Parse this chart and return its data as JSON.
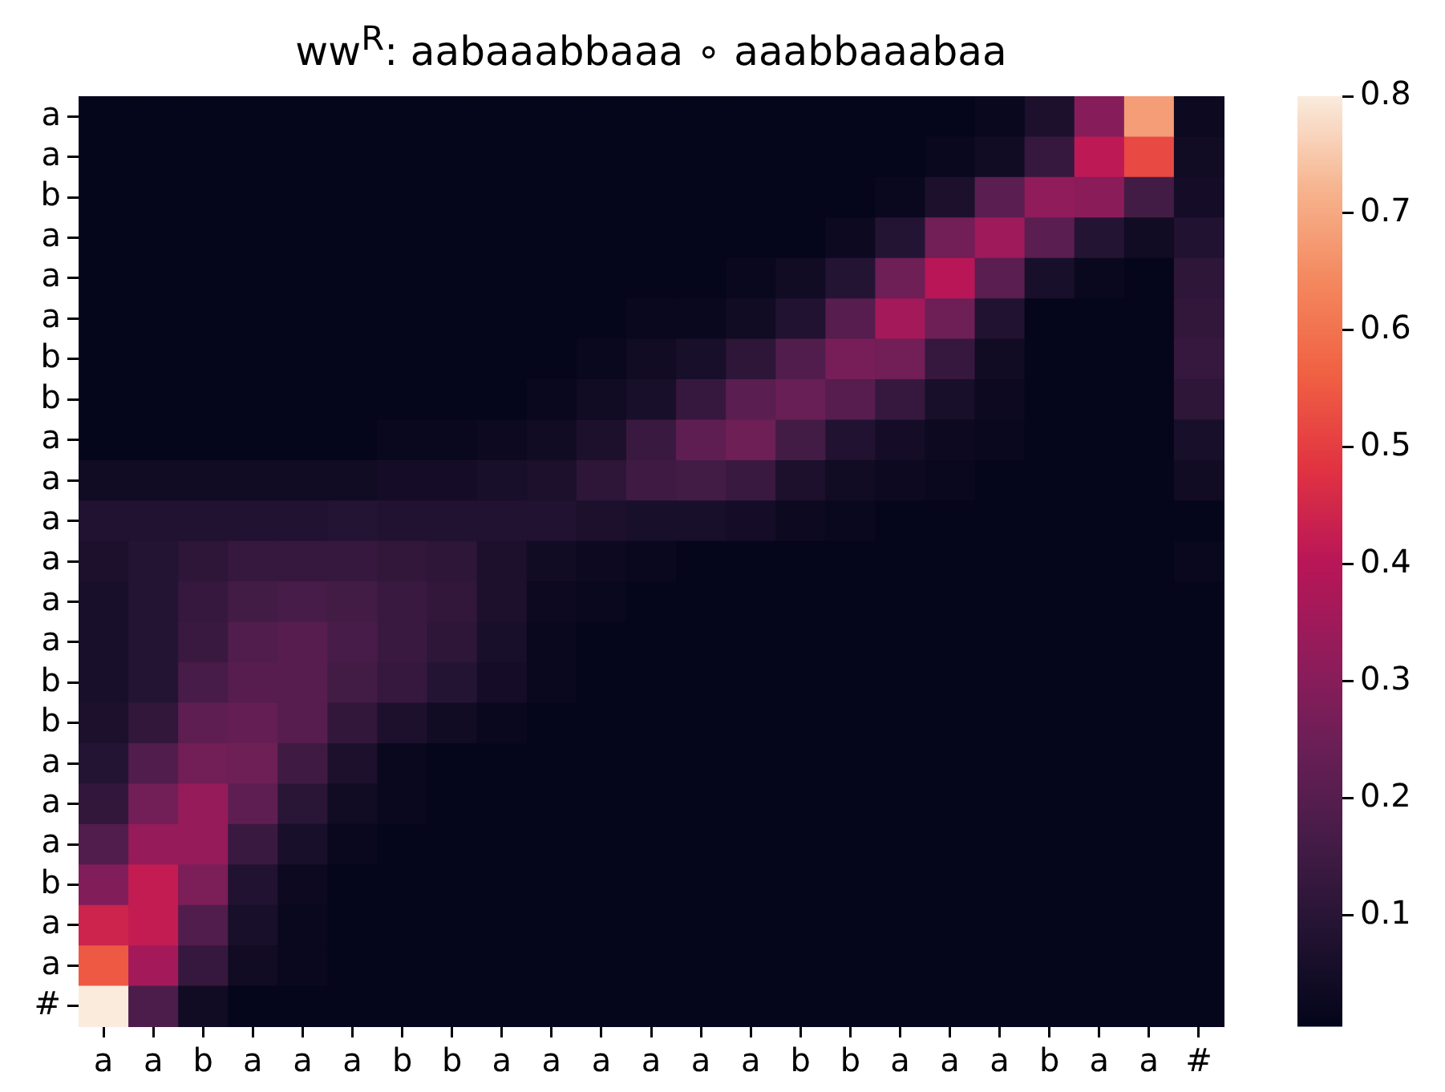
{
  "chart_data": {
    "type": "heatmap",
    "title": "ww$^{R}$: aabaaabbaaa ∘ aaabbaaabaa",
    "categories": [
      "a",
      "a",
      "b",
      "a",
      "a",
      "a",
      "b",
      "b",
      "a",
      "a",
      "a",
      "a",
      "a",
      "a",
      "b",
      "b",
      "a",
      "a",
      "a",
      "b",
      "a",
      "a",
      "#"
    ],
    "y_categories": [
      "a",
      "a",
      "b",
      "a",
      "a",
      "a",
      "b",
      "b",
      "a",
      "a",
      "a",
      "a",
      "a",
      "a",
      "b",
      "b",
      "a",
      "a",
      "a",
      "b",
      "a",
      "a",
      "#"
    ],
    "clim": [
      0.005,
      0.8
    ],
    "cticks": [
      0.1,
      0.2,
      0.3,
      0.4,
      0.5,
      0.6,
      0.7,
      0.8
    ],
    "cells": [
      [
        0.01,
        0.01,
        0.01,
        0.01,
        0.01,
        0.01,
        0.01,
        0.01,
        0.01,
        0.01,
        0.01,
        0.01,
        0.01,
        0.01,
        0.01,
        0.01,
        0.01,
        0.01,
        0.02,
        0.07,
        0.3,
        0.68,
        0.03
      ],
      [
        0.01,
        0.01,
        0.01,
        0.01,
        0.01,
        0.01,
        0.01,
        0.01,
        0.01,
        0.01,
        0.01,
        0.01,
        0.01,
        0.01,
        0.01,
        0.01,
        0.01,
        0.02,
        0.04,
        0.13,
        0.41,
        0.52,
        0.04
      ],
      [
        0.01,
        0.01,
        0.01,
        0.01,
        0.01,
        0.01,
        0.01,
        0.01,
        0.01,
        0.01,
        0.01,
        0.01,
        0.01,
        0.01,
        0.01,
        0.01,
        0.02,
        0.07,
        0.21,
        0.32,
        0.31,
        0.16,
        0.05
      ],
      [
        0.01,
        0.01,
        0.01,
        0.01,
        0.01,
        0.01,
        0.01,
        0.01,
        0.01,
        0.01,
        0.01,
        0.01,
        0.01,
        0.01,
        0.01,
        0.03,
        0.09,
        0.26,
        0.35,
        0.21,
        0.09,
        0.04,
        0.08
      ],
      [
        0.01,
        0.01,
        0.01,
        0.01,
        0.01,
        0.01,
        0.01,
        0.01,
        0.01,
        0.01,
        0.01,
        0.01,
        0.01,
        0.02,
        0.04,
        0.09,
        0.25,
        0.4,
        0.21,
        0.06,
        0.02,
        0.01,
        0.11
      ],
      [
        0.01,
        0.01,
        0.01,
        0.01,
        0.01,
        0.01,
        0.01,
        0.01,
        0.01,
        0.01,
        0.01,
        0.02,
        0.02,
        0.04,
        0.08,
        0.2,
        0.36,
        0.25,
        0.08,
        0.01,
        0.01,
        0.01,
        0.12
      ],
      [
        0.01,
        0.01,
        0.01,
        0.01,
        0.01,
        0.01,
        0.01,
        0.01,
        0.01,
        0.01,
        0.02,
        0.04,
        0.06,
        0.11,
        0.19,
        0.27,
        0.26,
        0.13,
        0.04,
        0.01,
        0.01,
        0.01,
        0.13
      ],
      [
        0.01,
        0.01,
        0.01,
        0.01,
        0.01,
        0.01,
        0.01,
        0.01,
        0.01,
        0.02,
        0.04,
        0.06,
        0.13,
        0.21,
        0.24,
        0.2,
        0.13,
        0.06,
        0.03,
        0.01,
        0.01,
        0.01,
        0.11
      ],
      [
        0.01,
        0.01,
        0.01,
        0.01,
        0.01,
        0.01,
        0.02,
        0.02,
        0.03,
        0.04,
        0.07,
        0.14,
        0.22,
        0.25,
        0.16,
        0.08,
        0.05,
        0.03,
        0.02,
        0.01,
        0.01,
        0.01,
        0.06
      ],
      [
        0.04,
        0.04,
        0.04,
        0.04,
        0.04,
        0.04,
        0.05,
        0.05,
        0.06,
        0.07,
        0.11,
        0.15,
        0.16,
        0.14,
        0.07,
        0.04,
        0.03,
        0.02,
        0.01,
        0.01,
        0.01,
        0.01,
        0.04
      ],
      [
        0.08,
        0.08,
        0.08,
        0.08,
        0.08,
        0.09,
        0.08,
        0.08,
        0.08,
        0.08,
        0.07,
        0.06,
        0.06,
        0.05,
        0.03,
        0.02,
        0.01,
        0.01,
        0.01,
        0.01,
        0.01,
        0.01,
        0.01
      ],
      [
        0.07,
        0.09,
        0.11,
        0.13,
        0.13,
        0.13,
        0.12,
        0.11,
        0.07,
        0.04,
        0.03,
        0.02,
        0.01,
        0.01,
        0.01,
        0.01,
        0.01,
        0.01,
        0.01,
        0.01,
        0.01,
        0.01,
        0.02
      ],
      [
        0.06,
        0.09,
        0.13,
        0.16,
        0.17,
        0.16,
        0.14,
        0.12,
        0.07,
        0.03,
        0.02,
        0.01,
        0.01,
        0.01,
        0.01,
        0.01,
        0.01,
        0.01,
        0.01,
        0.01,
        0.01,
        0.01,
        0.01
      ],
      [
        0.06,
        0.09,
        0.14,
        0.19,
        0.2,
        0.17,
        0.14,
        0.11,
        0.06,
        0.02,
        0.01,
        0.01,
        0.01,
        0.01,
        0.01,
        0.01,
        0.01,
        0.01,
        0.01,
        0.01,
        0.01,
        0.01,
        0.01
      ],
      [
        0.06,
        0.09,
        0.17,
        0.2,
        0.2,
        0.16,
        0.13,
        0.09,
        0.05,
        0.02,
        0.01,
        0.01,
        0.01,
        0.01,
        0.01,
        0.01,
        0.01,
        0.01,
        0.01,
        0.01,
        0.01,
        0.01,
        0.01
      ],
      [
        0.07,
        0.12,
        0.22,
        0.23,
        0.2,
        0.12,
        0.07,
        0.04,
        0.02,
        0.01,
        0.01,
        0.01,
        0.01,
        0.01,
        0.01,
        0.01,
        0.01,
        0.01,
        0.01,
        0.01,
        0.01,
        0.01,
        0.01
      ],
      [
        0.09,
        0.19,
        0.26,
        0.25,
        0.15,
        0.07,
        0.02,
        0.01,
        0.01,
        0.01,
        0.01,
        0.01,
        0.01,
        0.01,
        0.01,
        0.01,
        0.01,
        0.01,
        0.01,
        0.01,
        0.01,
        0.01,
        0.01
      ],
      [
        0.12,
        0.26,
        0.33,
        0.22,
        0.1,
        0.04,
        0.02,
        0.01,
        0.01,
        0.01,
        0.01,
        0.01,
        0.01,
        0.01,
        0.01,
        0.01,
        0.01,
        0.01,
        0.01,
        0.01,
        0.01,
        0.01,
        0.01
      ],
      [
        0.19,
        0.33,
        0.33,
        0.14,
        0.06,
        0.02,
        0.01,
        0.01,
        0.01,
        0.01,
        0.01,
        0.01,
        0.01,
        0.01,
        0.01,
        0.01,
        0.01,
        0.01,
        0.01,
        0.01,
        0.01,
        0.01,
        0.01
      ],
      [
        0.29,
        0.42,
        0.28,
        0.08,
        0.03,
        0.01,
        0.01,
        0.01,
        0.01,
        0.01,
        0.01,
        0.01,
        0.01,
        0.01,
        0.01,
        0.01,
        0.01,
        0.01,
        0.01,
        0.01,
        0.01,
        0.01,
        0.01
      ],
      [
        0.44,
        0.42,
        0.19,
        0.06,
        0.02,
        0.01,
        0.01,
        0.01,
        0.01,
        0.01,
        0.01,
        0.01,
        0.01,
        0.01,
        0.01,
        0.01,
        0.01,
        0.01,
        0.01,
        0.01,
        0.01,
        0.01,
        0.01
      ],
      [
        0.55,
        0.36,
        0.13,
        0.04,
        0.02,
        0.01,
        0.01,
        0.01,
        0.01,
        0.01,
        0.01,
        0.01,
        0.01,
        0.01,
        0.01,
        0.01,
        0.01,
        0.01,
        0.01,
        0.01,
        0.01,
        0.01,
        0.01
      ],
      [
        0.8,
        0.18,
        0.04,
        0.01,
        0.01,
        0.01,
        0.01,
        0.01,
        0.01,
        0.01,
        0.01,
        0.01,
        0.01,
        0.01,
        0.01,
        0.01,
        0.01,
        0.01,
        0.01,
        0.01,
        0.01,
        0.01,
        0.01
      ]
    ]
  }
}
